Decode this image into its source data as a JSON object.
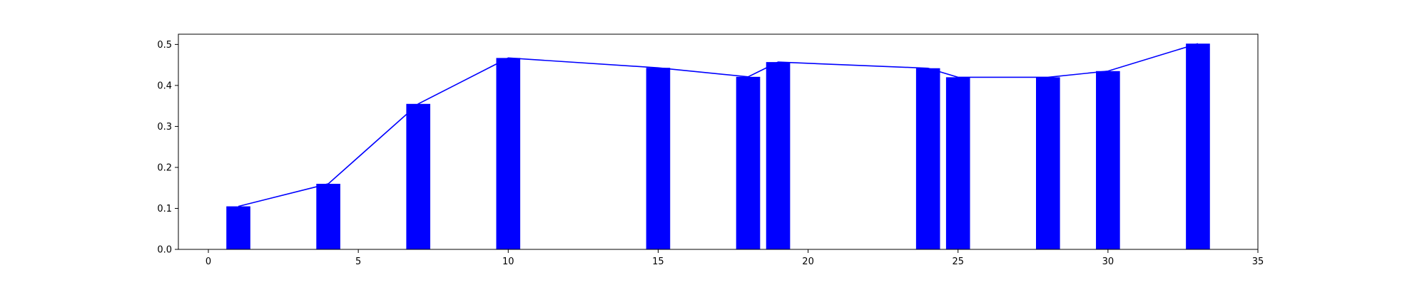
{
  "chart_data": {
    "type": "bar",
    "title": "",
    "xlabel": "",
    "ylabel": "",
    "xlim": [
      -1,
      35
    ],
    "ylim": [
      0,
      0.525
    ],
    "grid": false,
    "bar_width": 0.8,
    "colors": {
      "bar": "#0000ff",
      "line": "#0000ff",
      "axes": "#000000"
    },
    "x": [
      1,
      4,
      7,
      10,
      15,
      18,
      19,
      24,
      25,
      28,
      30,
      33
    ],
    "values": [
      0.105,
      0.16,
      0.355,
      0.467,
      0.443,
      0.421,
      0.457,
      0.442,
      0.42,
      0.42,
      0.435,
      0.502
    ],
    "series": [
      {
        "type": "bar",
        "values": [
          0.105,
          0.16,
          0.355,
          0.467,
          0.443,
          0.421,
          0.457,
          0.442,
          0.42,
          0.42,
          0.435,
          0.502
        ]
      },
      {
        "type": "line",
        "values": [
          0.105,
          0.16,
          0.355,
          0.467,
          0.443,
          0.421,
          0.457,
          0.442,
          0.42,
          0.42,
          0.435,
          0.502
        ]
      }
    ],
    "xticks": [
      0,
      5,
      10,
      15,
      20,
      25,
      30,
      35
    ],
    "xtick_labels": [
      "0",
      "5",
      "10",
      "15",
      "20",
      "25",
      "30",
      "35"
    ],
    "yticks": [
      0.0,
      0.1,
      0.2,
      0.3,
      0.4,
      0.5
    ],
    "ytick_labels": [
      "0.0",
      "0.1",
      "0.2",
      "0.3",
      "0.4",
      "0.5"
    ]
  }
}
